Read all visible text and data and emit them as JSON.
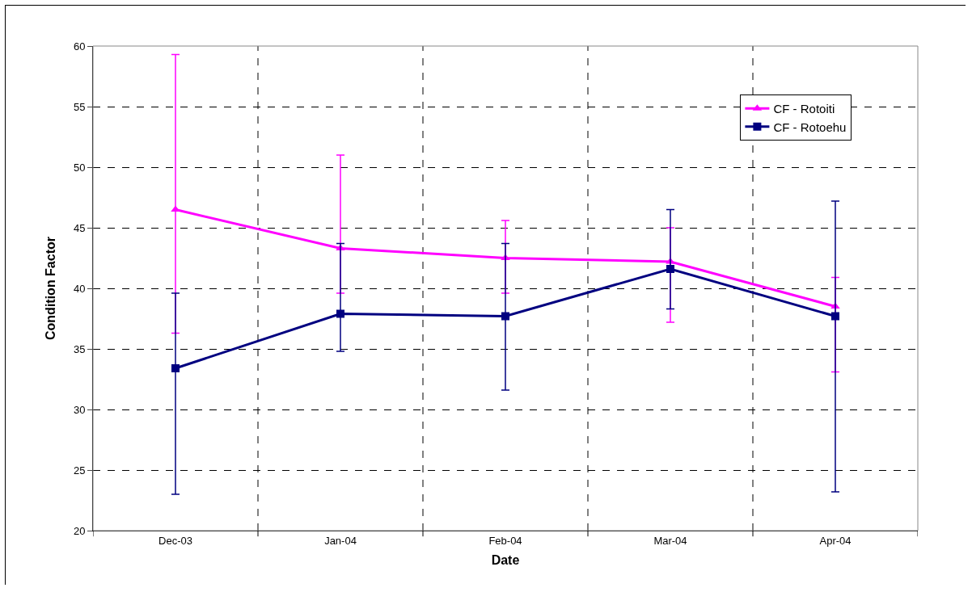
{
  "chart_data": {
    "type": "line",
    "xlabel": "Date",
    "ylabel": "Condition Factor",
    "categories": [
      "Dec-03",
      "Jan-04",
      "Feb-04",
      "Mar-04",
      "Apr-04"
    ],
    "series": [
      {
        "name": "CF - Rotoiti",
        "color": "#ff00ff",
        "marker": "triangle",
        "values": [
          46.5,
          43.3,
          42.5,
          42.2,
          38.5
        ],
        "errors": [
          [
            36.3,
            59.3
          ],
          [
            39.6,
            51.0
          ],
          [
            39.6,
            45.6
          ],
          [
            37.2,
            45.0
          ],
          [
            33.1,
            40.9
          ]
        ]
      },
      {
        "name": "CF - Rotoehu",
        "color": "#000080",
        "marker": "square",
        "values": [
          33.4,
          37.9,
          37.7,
          41.6,
          37.7
        ],
        "errors": [
          [
            23.0,
            39.6
          ],
          [
            34.8,
            43.7
          ],
          [
            31.6,
            43.7
          ],
          [
            38.3,
            46.5
          ],
          [
            23.2,
            47.2
          ]
        ]
      }
    ],
    "ylim": [
      20,
      60
    ],
    "yticks": [
      20,
      25,
      30,
      35,
      40,
      45,
      50,
      55,
      60
    ],
    "grid": true,
    "legend": "top right",
    "line_style": "solid"
  }
}
